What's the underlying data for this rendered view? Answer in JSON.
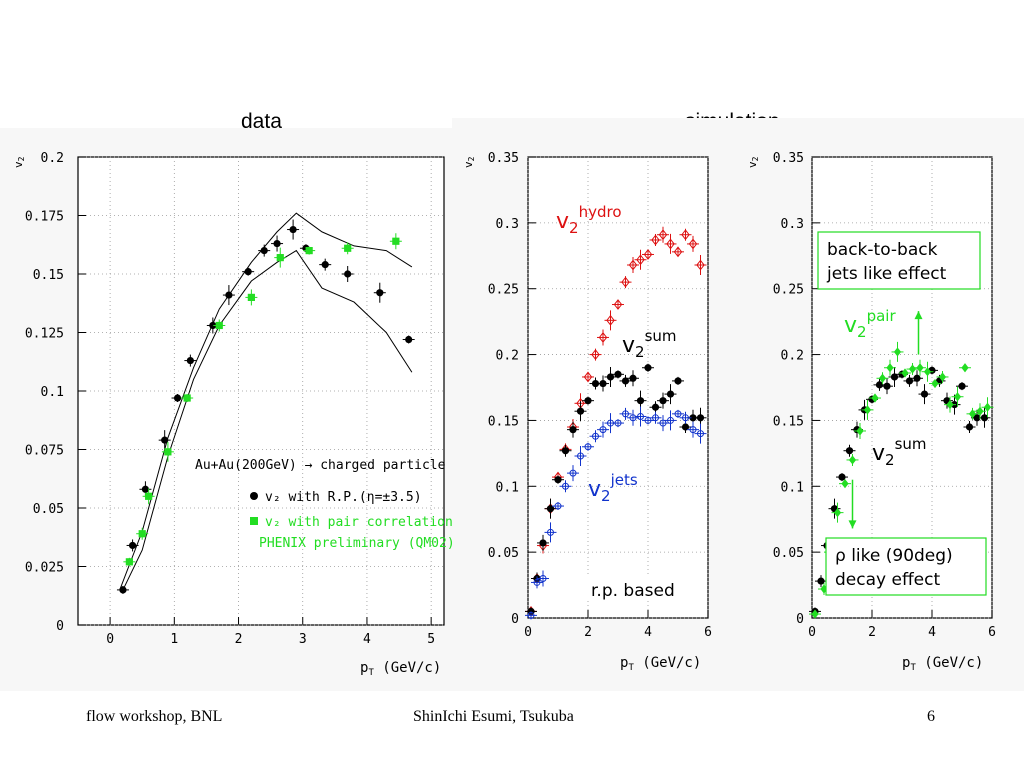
{
  "headers": {
    "data": "data",
    "simulation": "simulation"
  },
  "footer": {
    "left": "flow workshop, BNL",
    "center": "ShinIchi Esumi, Tsukuba",
    "page": "6"
  },
  "chart_data": [
    {
      "type": "scatter",
      "title": "data",
      "xlabel": "p",
      "xlabel_sub": "T",
      "xlabel_unit": " (GeV/c)",
      "ylabel": "v",
      "ylabel_sub": "2",
      "xlim": [
        -0.5,
        5.2
      ],
      "ylim": [
        0,
        0.2
      ],
      "xticks": [
        0,
        1,
        2,
        3,
        4,
        5
      ],
      "yticks": [
        0,
        0.025,
        0.05,
        0.075,
        0.1,
        0.125,
        0.15,
        0.175,
        0.2
      ],
      "grid": true,
      "annotation": "Au+Au(200GeV) → charged particle",
      "series": [
        {
          "name": "v₂ with R.P.(η=±3.5)",
          "color": "#000000",
          "marker": "circle",
          "x": [
            0.2,
            0.35,
            0.55,
            0.85,
            1.05,
            1.25,
            1.6,
            1.85,
            2.15,
            2.4,
            2.6,
            2.85,
            3.05,
            3.35,
            3.7,
            4.2,
            4.65
          ],
          "y": [
            0.015,
            0.034,
            0.058,
            0.079,
            0.097,
            0.113,
            0.128,
            0.141,
            0.151,
            0.16,
            0.163,
            0.169,
            0.161,
            0.154,
            0.15,
            0.142,
            0.122
          ]
        },
        {
          "name": "v₂ with pair correlation",
          "color": "#22dd22",
          "marker": "square",
          "x": [
            0.3,
            0.5,
            0.6,
            0.9,
            1.2,
            1.7,
            2.2,
            2.65,
            3.1,
            3.7,
            4.45
          ],
          "y": [
            0.027,
            0.039,
            0.055,
            0.074,
            0.097,
            0.128,
            0.14,
            0.157,
            0.16,
            0.161,
            0.164
          ]
        },
        {
          "name": "PHENIX preliminary (QM02)",
          "color": "#22dd22",
          "marker": "none",
          "x": [],
          "y": []
        }
      ],
      "band_upper": {
        "x": [
          0.15,
          0.5,
          0.9,
          1.3,
          1.7,
          2.2,
          2.6,
          2.9,
          3.3,
          3.8,
          4.3,
          4.7
        ],
        "y": [
          0.015,
          0.04,
          0.08,
          0.11,
          0.135,
          0.155,
          0.168,
          0.176,
          0.168,
          0.162,
          0.16,
          0.153
        ]
      },
      "band_lower": {
        "x": [
          0.2,
          0.5,
          0.9,
          1.3,
          1.7,
          2.2,
          2.6,
          2.9,
          3.3,
          3.8,
          4.3,
          4.7
        ],
        "y": [
          0.015,
          0.032,
          0.072,
          0.105,
          0.128,
          0.147,
          0.155,
          0.16,
          0.144,
          0.138,
          0.125,
          0.108
        ]
      }
    },
    {
      "type": "scatter",
      "title": "simulation",
      "xlabel": "p",
      "xlabel_sub": "T",
      "xlabel_unit": " (GeV/c)",
      "ylabel": "v",
      "ylabel_sub": "2",
      "xlim": [
        0,
        6
      ],
      "ylim": [
        0,
        0.35
      ],
      "xticks": [
        0,
        2,
        4,
        6
      ],
      "yticks": [
        0,
        0.05,
        0.1,
        0.15,
        0.2,
        0.25,
        0.3,
        0.35
      ],
      "grid": true,
      "labels": [
        {
          "text": "v",
          "sub": "2",
          "sup": "hydro",
          "color": "#dd1111"
        },
        {
          "text": "v",
          "sub": "2",
          "sup": "sum",
          "color": "#000000"
        },
        {
          "text": "v",
          "sub": "2",
          "sup": "jets",
          "color": "#1133cc"
        },
        {
          "text": "r.p. based",
          "color": "#000000"
        }
      ],
      "series": [
        {
          "name": "hydro",
          "color": "#dd1111",
          "marker": "open-diamond",
          "x": [
            0.1,
            0.3,
            0.5,
            0.75,
            1.0,
            1.25,
            1.5,
            1.75,
            2.0,
            2.25,
            2.5,
            2.75,
            3.0,
            3.25,
            3.5,
            3.75,
            4.0,
            4.25,
            4.5,
            4.75,
            5.0,
            5.25,
            5.5,
            5.75
          ],
          "y": [
            0.005,
            0.03,
            0.055,
            0.083,
            0.107,
            0.128,
            0.145,
            0.163,
            0.183,
            0.2,
            0.213,
            0.226,
            0.238,
            0.255,
            0.268,
            0.272,
            0.276,
            0.287,
            0.291,
            0.284,
            0.278,
            0.291,
            0.284,
            0.268
          ]
        },
        {
          "name": "sum",
          "color": "#000000",
          "marker": "circle",
          "x": [
            0.1,
            0.3,
            0.5,
            0.75,
            1.0,
            1.25,
            1.5,
            1.75,
            2.0,
            2.25,
            2.5,
            2.75,
            3.0,
            3.25,
            3.5,
            3.75,
            4.0,
            4.25,
            4.5,
            4.75,
            5.0,
            5.25,
            5.5,
            5.75
          ],
          "y": [
            0.005,
            0.03,
            0.057,
            0.083,
            0.105,
            0.127,
            0.143,
            0.157,
            0.165,
            0.178,
            0.178,
            0.183,
            0.185,
            0.18,
            0.182,
            0.165,
            0.19,
            0.16,
            0.165,
            0.17,
            0.18,
            0.145,
            0.152,
            0.152
          ]
        },
        {
          "name": "jets",
          "color": "#1133cc",
          "marker": "open-circle",
          "x": [
            0.1,
            0.3,
            0.5,
            0.75,
            1.0,
            1.25,
            1.5,
            1.75,
            2.0,
            2.25,
            2.5,
            2.75,
            3.0,
            3.25,
            3.5,
            3.75,
            4.0,
            4.25,
            4.5,
            4.75,
            5.0,
            5.25,
            5.5,
            5.75
          ],
          "y": [
            0.002,
            0.027,
            0.03,
            0.065,
            0.085,
            0.1,
            0.11,
            0.123,
            0.13,
            0.138,
            0.143,
            0.148,
            0.148,
            0.155,
            0.152,
            0.153,
            0.15,
            0.152,
            0.148,
            0.15,
            0.155,
            0.152,
            0.143,
            0.14
          ]
        }
      ]
    },
    {
      "type": "scatter",
      "xlabel": "p",
      "xlabel_sub": "T",
      "xlabel_unit": " (GeV/c)",
      "ylabel": "v",
      "ylabel_sub": "2",
      "xlim": [
        0,
        6
      ],
      "ylim": [
        0,
        0.35
      ],
      "xticks": [
        0,
        2,
        4,
        6
      ],
      "yticks": [
        0,
        0.05,
        0.1,
        0.15,
        0.2,
        0.25,
        0.3,
        0.35
      ],
      "grid": true,
      "labels": [
        {
          "text": "back-to-back jets like effect",
          "line1": "back-to-back",
          "line2": "jets like effect",
          "color": "#000000"
        },
        {
          "text": "v",
          "sub": "2",
          "sup": "pair",
          "color": "#22dd22"
        },
        {
          "text": "v",
          "sub": "2",
          "sup": "sum",
          "color": "#000000"
        },
        {
          "text": "ρ like (90deg) decay effect",
          "line1": "ρ like (90deg)",
          "line2": "decay effect",
          "color": "#000000"
        }
      ],
      "series": [
        {
          "name": "sum",
          "color": "#000000",
          "marker": "circle",
          "x": [
            0.1,
            0.3,
            0.5,
            0.75,
            1.0,
            1.25,
            1.5,
            1.75,
            2.0,
            2.25,
            2.5,
            2.75,
            3.0,
            3.25,
            3.5,
            3.75,
            4.0,
            4.25,
            4.5,
            4.75,
            5.0,
            5.25,
            5.5,
            5.75
          ],
          "y": [
            0.005,
            0.028,
            0.055,
            0.083,
            0.107,
            0.127,
            0.143,
            0.158,
            0.166,
            0.177,
            0.176,
            0.183,
            0.185,
            0.18,
            0.182,
            0.17,
            0.188,
            0.18,
            0.165,
            0.162,
            0.176,
            0.145,
            0.152,
            0.152
          ]
        },
        {
          "name": "pair",
          "color": "#22dd22",
          "marker": "diamond",
          "x": [
            0.1,
            0.4,
            0.6,
            0.85,
            1.1,
            1.35,
            1.6,
            1.85,
            2.1,
            2.35,
            2.6,
            2.85,
            3.1,
            3.35,
            3.6,
            3.85,
            4.1,
            4.35,
            4.6,
            4.85,
            5.1,
            5.35,
            5.6,
            5.85
          ],
          "y": [
            0.003,
            0.022,
            0.05,
            0.08,
            0.102,
            0.12,
            0.142,
            0.158,
            0.167,
            0.182,
            0.19,
            0.202,
            0.186,
            0.189,
            0.19,
            0.187,
            0.178,
            0.183,
            0.162,
            0.168,
            0.19,
            0.155,
            0.157,
            0.16
          ]
        }
      ],
      "arrows": [
        {
          "color": "#22dd22",
          "x": 3.55,
          "y_from": 0.2,
          "y_to": 0.233
        },
        {
          "color": "#22dd22",
          "x": 1.35,
          "y_from": 0.105,
          "y_to": 0.068
        }
      ]
    }
  ]
}
